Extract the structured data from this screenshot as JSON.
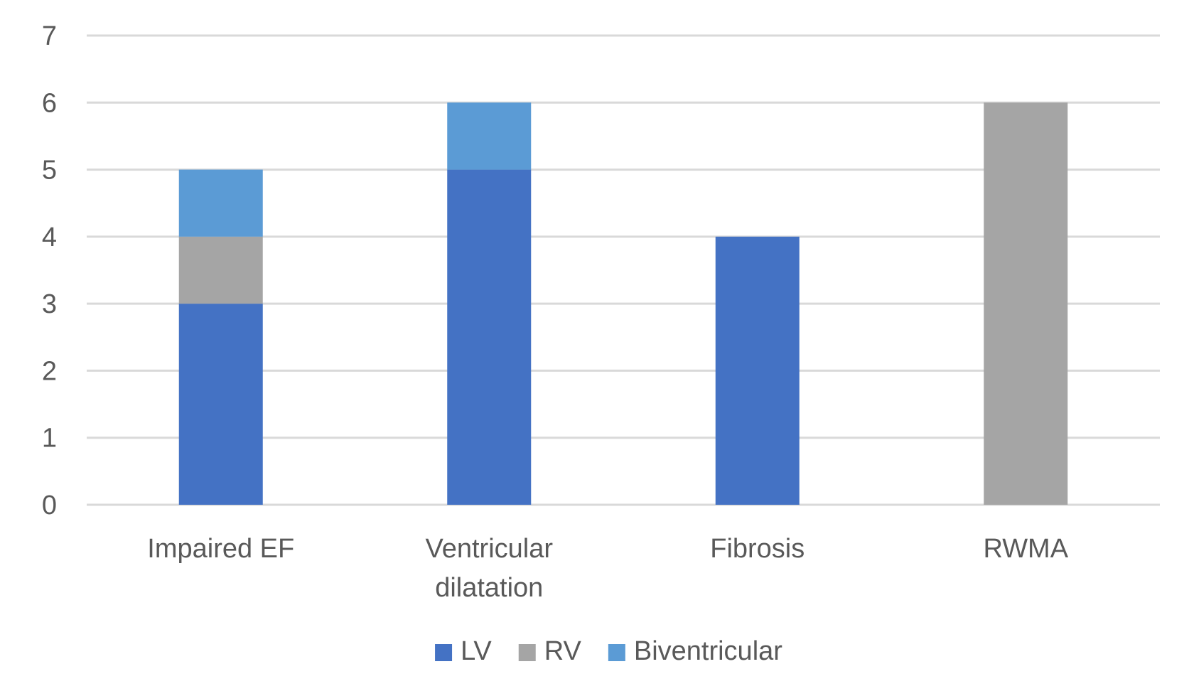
{
  "chart_data": {
    "type": "bar",
    "stacked": true,
    "categories": [
      [
        "Impaired EF"
      ],
      [
        "Ventricular",
        "dilatation"
      ],
      [
        "Fibrosis"
      ],
      [
        "RWMA"
      ]
    ],
    "series": [
      {
        "name": "LV",
        "color": "#4472C4",
        "values": [
          3,
          5,
          4,
          0
        ]
      },
      {
        "name": "RV",
        "color": "#A5A5A5",
        "values": [
          1,
          0,
          0,
          6
        ]
      },
      {
        "name": "Biventricular",
        "color": "#5B9BD5",
        "values": [
          1,
          1,
          0,
          0
        ]
      }
    ],
    "ylim": [
      0,
      7
    ],
    "yticks": [
      0,
      1,
      2,
      3,
      4,
      5,
      6,
      7
    ],
    "grid": true,
    "gridColor": "#D9D9D9",
    "legend": "bottom-center",
    "title": "",
    "xlabel": "",
    "ylabel": ""
  }
}
